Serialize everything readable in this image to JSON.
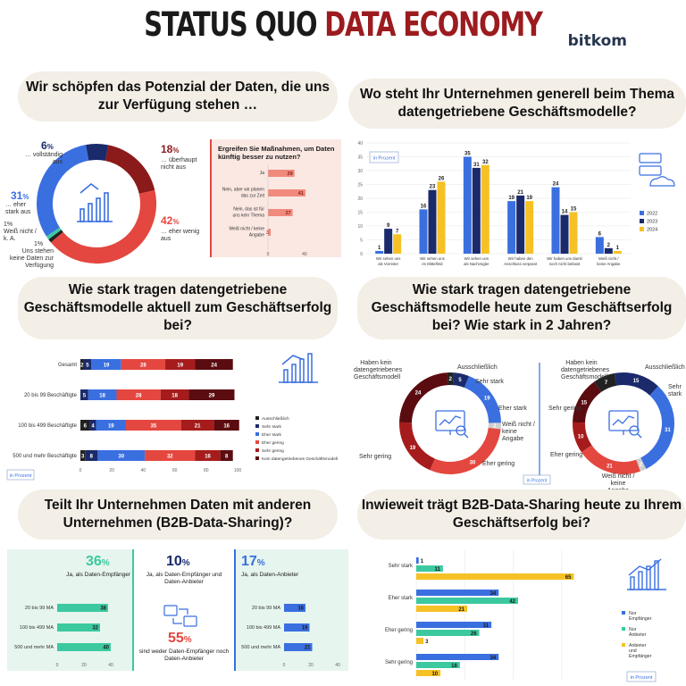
{
  "header": {
    "title_part1": "STATUS QUO",
    "title_part2": "DATA ECONOMY",
    "brand": "bitkom"
  },
  "colors": {
    "dark_red": "#8b1a1a",
    "red": "#e4473f",
    "salmon": "#f08a7c",
    "navy": "#1a2a6b",
    "blue": "#3a6fe0",
    "yellow": "#f6c125",
    "green": "#3cc9a0",
    "light_green_bg": "#e6f5ee"
  },
  "panel1": {
    "question": "Wir schöpfen das Potenzial der Daten, die uns zur Verfügung stehen …",
    "donut_labels": [
      {
        "pct": "6",
        "unit": "%",
        "text": "… vollständig aus"
      },
      {
        "pct": "18",
        "unit": "%",
        "text": "… überhaupt nicht aus"
      },
      {
        "pct": "31",
        "unit": "%",
        "text": "… eher stark aus"
      },
      {
        "pct": "42",
        "unit": "%",
        "text": "… eher wenig aus"
      },
      {
        "pct": "1",
        "unit": "%",
        "text": "Weiß nicht / k. A."
      },
      {
        "pct": "1",
        "unit": "%",
        "text": "Uns stehen keine Daten zur Verfügung"
      }
    ],
    "sub_question": "Ergreifen Sie Maßnahmen, um Daten künftig besser zu nutzen?",
    "bars_axis": [
      "0",
      "40"
    ]
  },
  "panel2": {
    "question": "Wo steht Ihr Unternehmen generell beim Thema datengetriebene Geschäftsmodelle?",
    "badge": "in Prozent",
    "axis_ticks": [
      "40",
      "35",
      "30",
      "25",
      "20",
      "15",
      "10",
      "5",
      "0"
    ]
  },
  "panel3": {
    "question": "Wie stark tragen datengetriebene Geschäftsmodelle aktuell zum Geschäftserfolg bei?",
    "badge": "in Prozent",
    "axis_ticks": [
      "0",
      "20",
      "40",
      "60",
      "80",
      "100"
    ]
  },
  "panel4": {
    "question": "Wie stark tragen datengetriebene Geschäftsmodelle heute zum Geschäftserfolg bei? Wie stark in 2 Jahren?",
    "badge": "in Prozent",
    "left_labels": [
      "Haben kein datengetriebenes Geschäftsmodell",
      "Ausschließlich",
      "Sehr stark",
      "Eher stark",
      "Weiß nicht / keine Angabe",
      "Eher gering",
      "Sehr gering"
    ],
    "right_labels": [
      "Haben kein datengetriebenes Geschäftsmodell",
      "Ausschließlich",
      "Sehr stark",
      "Sehr gering",
      "Eher gering",
      "Weiß nicht / keine Angabe"
    ]
  },
  "panel5": {
    "question": "Teilt Ihr Unternehmen Daten mit anderen Unternehmen (B2B-Data-Sharing)?",
    "recipient": {
      "pct": "36",
      "unit": "%",
      "label": "Ja, als Daten-Empfänger"
    },
    "both": {
      "pct": "10",
      "unit": "%",
      "label": "Ja, als Daten-Empfänger und Daten-Anbieter"
    },
    "neither": {
      "pct": "55",
      "unit": "%",
      "label": "sind weder Daten-Empfänger noch Daten-Anbieter"
    },
    "provider": {
      "pct": "17",
      "unit": "%",
      "label": "Ja, als Daten-Anbieter"
    },
    "left_axis": [
      "0",
      "20",
      "40"
    ],
    "right_axis": [
      "0",
      "20",
      "40"
    ]
  },
  "panel6": {
    "question": "Inwieweit trägt B2B-Data-Sharing heute zu Ihrem Geschäftserfolg bei?",
    "badge": "in Prozent"
  },
  "chart_data": [
    {
      "type": "pie",
      "title": "Wir schöpfen das Potenzial der Daten, die uns zur Verfügung stehen …",
      "categories": [
        "… vollständig aus",
        "… überhaupt nicht aus",
        "… eher wenig aus",
        "Uns stehen keine Daten zur Verfügung",
        "Weiß nicht / k. A.",
        "… eher stark aus"
      ],
      "values": [
        6,
        18,
        42,
        1,
        1,
        31
      ],
      "colors": [
        "#1a2a6b",
        "#8b1a1a",
        "#e4473f",
        "#222222",
        "#3cc9a0",
        "#3a6fe0"
      ]
    },
    {
      "type": "bar",
      "title": "Ergreifen Sie Maßnahmen, um Daten künftig besser zu nutzen?",
      "categories": [
        "Ja",
        "Nein, aber wir planen das zur Zeit",
        "Nein, das ist für uns kein Thema",
        "Weiß nicht / keine Angabe"
      ],
      "values": [
        29,
        41,
        27,
        3
      ],
      "xlim": [
        0,
        45
      ]
    },
    {
      "type": "bar",
      "title": "Wo steht Ihr Unternehmen generell beim Thema datengetriebene Geschäftsmodelle?",
      "categories": [
        "Wir sehen uns als Vorreiter",
        "Wir sehen uns im Mittelfeld",
        "Wir sehen uns als Nachzügler",
        "Wir haben den Anschluss verpasst",
        "Wir haben uns damit noch nicht befasst",
        "Weiß nicht / keine Angabe"
      ],
      "series": [
        {
          "name": "2022",
          "values": [
            1,
            16,
            35,
            19,
            24,
            6
          ],
          "color": "#3a6fe0"
        },
        {
          "name": "2023",
          "values": [
            9,
            23,
            31,
            21,
            14,
            2
          ],
          "color": "#1a2a6b"
        },
        {
          "name": "2024",
          "values": [
            7,
            26,
            32,
            19,
            15,
            1
          ],
          "color": "#f6c125"
        }
      ],
      "ylim": [
        0,
        40
      ]
    },
    {
      "type": "bar",
      "title": "Wie stark tragen datengetriebene Geschäftsmodelle aktuell zum Geschäftserfolg bei?",
      "stacked": true,
      "categories": [
        "Gesamt",
        "20 bis 99 Beschäftigte",
        "100 bis 499 Beschäftigte",
        "500 und mehr Beschäftigte"
      ],
      "series": [
        {
          "name": "Ausschließlich",
          "values": [
            2,
            0,
            6,
            3
          ],
          "color": "#222222"
        },
        {
          "name": "Sehr stark",
          "values": [
            5,
            5,
            4,
            8
          ],
          "color": "#1a2a6b"
        },
        {
          "name": "Eher stark",
          "values": [
            19,
            18,
            19,
            30
          ],
          "color": "#3a6fe0"
        },
        {
          "name": "Eher gering",
          "values": [
            28,
            28,
            35,
            32
          ],
          "color": "#e4473f"
        },
        {
          "name": "Sehr gering",
          "values": [
            19,
            18,
            21,
            16
          ],
          "color": "#a61c1c"
        },
        {
          "name": "Kein datengetriebenes Geschäftsmodell",
          "values": [
            24,
            29,
            16,
            8
          ],
          "color": "#5a0c10"
        }
      ],
      "xlim": [
        0,
        100
      ]
    },
    {
      "type": "pie",
      "title": "heute",
      "categories": [
        "Haben kein datengetriebenes Geschäftsmodell",
        "Ausschließlich",
        "Sehr stark",
        "Eher stark",
        "Weiß nicht / keine Angabe",
        "Eher gering",
        "Sehr gering"
      ],
      "values": [
        24,
        2,
        5,
        19,
        2,
        30,
        19
      ]
    },
    {
      "type": "pie",
      "title": "in 2 Jahren",
      "categories": [
        "Haben kein datengetriebenes Geschäftsmodell",
        "Ausschließlich",
        "Sehr stark",
        "Eher stark",
        "Weiß nicht / keine Angabe",
        "Eher gering",
        "Sehr gering"
      ],
      "values": [
        15,
        7,
        15,
        31,
        2,
        21,
        10
      ]
    },
    {
      "type": "bar",
      "title": "Teilt Ihr Unternehmen Daten mit anderen Unternehmen – Ja, als Daten-Empfänger",
      "categories": [
        "20 bis 99 MA",
        "100 bis 499 MA",
        "500 und mehr MA"
      ],
      "values": [
        38,
        32,
        40
      ],
      "xlim": [
        0,
        40
      ]
    },
    {
      "type": "bar",
      "title": "Teilt Ihr Unternehmen Daten mit anderen Unternehmen – Ja, als Daten-Anbieter",
      "categories": [
        "20 bis 99 MA",
        "100 bis 499 MA",
        "500 und mehr MA"
      ],
      "values": [
        16,
        19,
        21
      ],
      "xlim": [
        0,
        40
      ]
    },
    {
      "type": "bar",
      "title": "Inwieweit trägt B2B-Data-Sharing heute zu Ihrem Geschäftserfolg bei?",
      "categories": [
        "Sehr stark",
        "Eher stark",
        "Eher gering",
        "Sehr gering"
      ],
      "series": [
        {
          "name": "Nur Empfänger",
          "values": [
            1,
            34,
            31,
            34
          ],
          "color": "#3a6fe0"
        },
        {
          "name": "Nur Anbieter",
          "values": [
            11,
            42,
            26,
            18
          ],
          "color": "#3cc9a0"
        },
        {
          "name": "Anbieter und Empfänger",
          "values": [
            65,
            21,
            3,
            10
          ],
          "color": "#f6c125"
        }
      ],
      "xlim": [
        0,
        70
      ]
    }
  ]
}
